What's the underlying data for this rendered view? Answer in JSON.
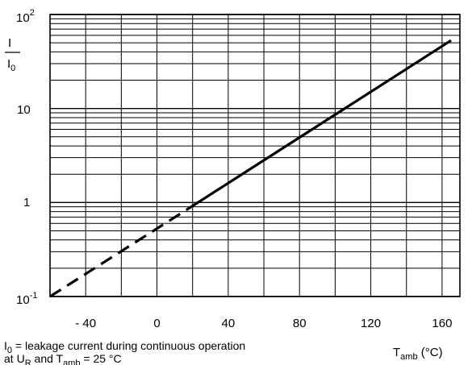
{
  "chart_data": {
    "type": "line",
    "y_scale": "log",
    "grid": true,
    "xlim": [
      -60,
      170
    ],
    "ylim": [
      0.1,
      100
    ],
    "x_ticks": [
      "- 40",
      "0",
      "40",
      "80",
      "120",
      "160"
    ],
    "x_tick_values": [
      -40,
      0,
      40,
      80,
      120,
      160
    ],
    "y_tick_labels": {
      "e2_base": "10",
      "e2_exp": "2",
      "ten": "10",
      "one": "1",
      "em1_base": "10",
      "em1_exp": "-1"
    },
    "y_tick_values": [
      100,
      10,
      1,
      0.1
    ],
    "ylabel": {
      "num": "I",
      "den_base": "I",
      "den_sub": "0"
    },
    "xlabel": {
      "base": "T",
      "sub": "amb",
      "unit": " (°C)"
    },
    "series": [
      {
        "style": "dashed",
        "x": [
          -60,
          18
        ],
        "y": [
          0.1,
          0.87
        ]
      },
      {
        "style": "solid",
        "x": [
          18,
          165
        ],
        "y": [
          0.87,
          53
        ]
      }
    ],
    "footnote": {
      "line1_pre": "I",
      "line1_sub": "0",
      "line1_post": " = leakage current during continuous operation",
      "line2_pre": "at U",
      "line2_sub": "R",
      "line2_mid": " and T",
      "line2_sub2": "amb",
      "line2_post": " = 25 °C"
    }
  }
}
